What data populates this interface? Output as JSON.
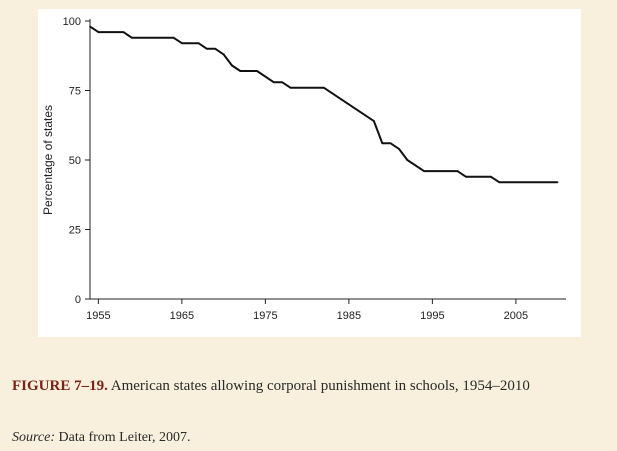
{
  "chart_data": {
    "type": "line",
    "xlabel": "",
    "ylabel": "Percentage of states",
    "xlim": [
      1954,
      2011
    ],
    "ylim": [
      0,
      100
    ],
    "x_ticks": [
      1955,
      1965,
      1975,
      1985,
      1995,
      2005
    ],
    "x_tick_labels": [
      "1955",
      "1965",
      "1975",
      "1985",
      "1995",
      "2005"
    ],
    "y_ticks": [
      0,
      25,
      50,
      75,
      100
    ],
    "y_tick_labels": [
      "0",
      "25",
      "50",
      "75",
      "100"
    ],
    "grid": false,
    "series": [
      {
        "line_color": "#111111",
        "x": [
          1954,
          1955,
          1958,
          1959,
          1964,
          1965,
          1967,
          1968,
          1969,
          1970,
          1971,
          1972,
          1974,
          1976,
          1977,
          1978,
          1982,
          1988,
          1989,
          1990,
          1991,
          1992,
          1994,
          1998,
          1999,
          2002,
          2003,
          2010
        ],
        "y": [
          98,
          96,
          96,
          94,
          94,
          92,
          92,
          90,
          90,
          88,
          84,
          82,
          82,
          78,
          78,
          76,
          76,
          64,
          56,
          56,
          54,
          50,
          46,
          46,
          44,
          44,
          42,
          42
        ]
      }
    ]
  },
  "caption": {
    "label": "FIGURE 7–19.",
    "text": " American states allowing corporal punishment in schools, 1954–2010"
  },
  "source": {
    "label": "Source:",
    "text": " Data from Leiter, 2007."
  }
}
